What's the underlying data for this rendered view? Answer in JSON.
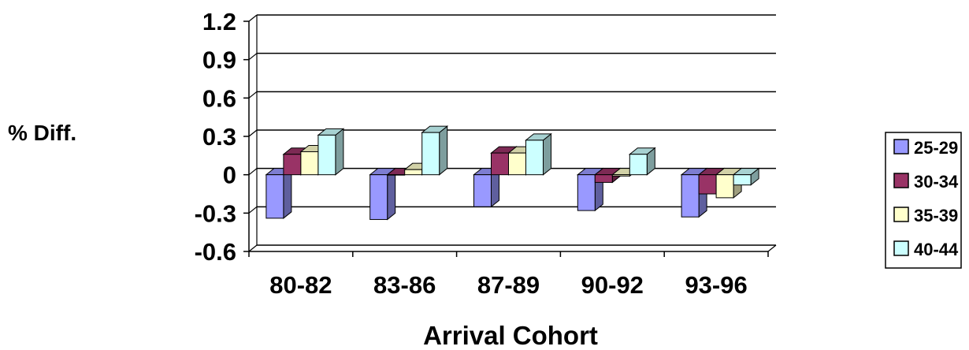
{
  "chart_data": {
    "type": "bar",
    "categories": [
      "80-82",
      "83-86",
      "87-89",
      "90-92",
      "93-96"
    ],
    "series": [
      {
        "name": "25-29",
        "values": [
          -0.34,
          -0.35,
          -0.25,
          -0.28,
          -0.33
        ],
        "color": "#9999ff"
      },
      {
        "name": "30-34",
        "values": [
          0.16,
          0.0,
          0.17,
          -0.06,
          -0.15
        ],
        "color": "#993366"
      },
      {
        "name": "35-39",
        "values": [
          0.18,
          0.04,
          0.17,
          -0.01,
          -0.18
        ],
        "color": "#ffffcc"
      },
      {
        "name": "40-44",
        "values": [
          0.31,
          0.33,
          0.27,
          0.16,
          -0.08
        ],
        "color": "#ccffff"
      }
    ],
    "ylim": [
      -0.6,
      1.2
    ],
    "yticks": [
      "1.2",
      "0.9",
      "0.6",
      "0.3",
      "0",
      "-0.3",
      "-0.6"
    ],
    "ytick_values": [
      1.2,
      0.9,
      0.6,
      0.3,
      0,
      -0.3,
      -0.6
    ],
    "xlabel": "Arrival Cohort",
    "ylabel": "% Diff.",
    "grid": true,
    "legend_position": "right"
  }
}
